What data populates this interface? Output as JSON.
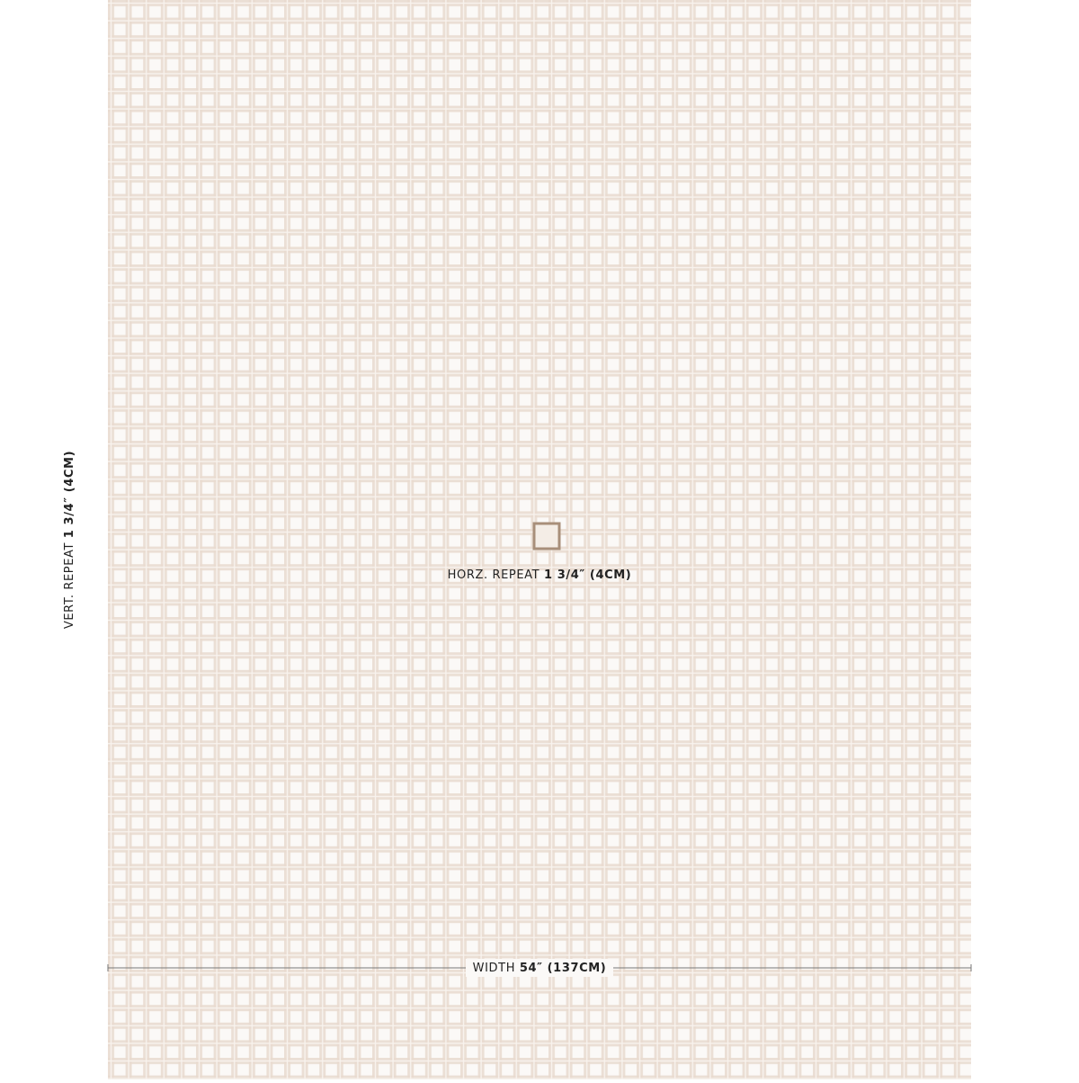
{
  "vertical_repeat": {
    "label": "VERT. REPEAT",
    "value": "1 3/4″ (4CM)"
  },
  "horizontal_repeat": {
    "label": "HORZ. REPEAT",
    "value": "1 3/4″ (4CM)"
  },
  "width": {
    "label": "WIDTH",
    "value": "54″ (137CM)"
  }
}
